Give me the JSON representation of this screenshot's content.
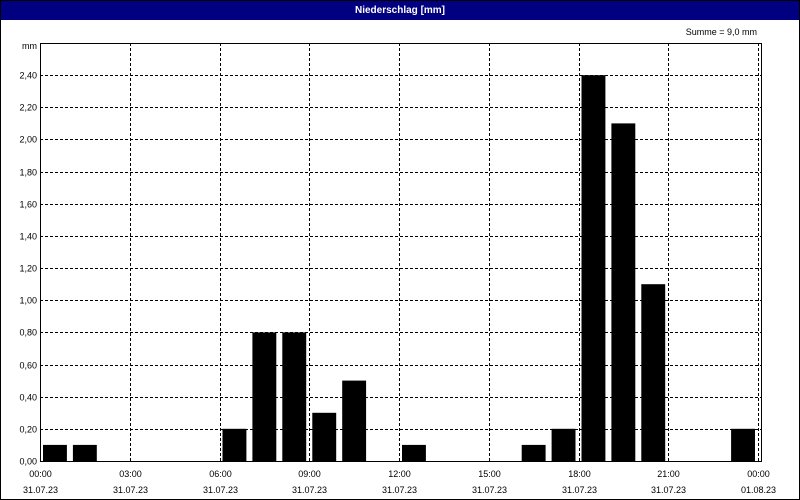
{
  "window": {
    "title": "Niederschlag [mm]"
  },
  "colors": {
    "titlebar": "#000080",
    "bar": "#000000",
    "grid": "#000000",
    "background": "#ffffff"
  },
  "chart_data": {
    "type": "bar",
    "title": "Niederschlag [mm]",
    "ylabel": "mm",
    "xlabel": "",
    "annotation": "Summe = 9,0 mm",
    "ylim": [
      0,
      2.6
    ],
    "yticks": [
      0,
      0.2,
      0.4,
      0.6,
      0.8,
      1.0,
      1.2,
      1.4,
      1.6,
      1.8,
      2.0,
      2.2,
      2.4
    ],
    "ytick_labels": [
      "0,00",
      "0,20",
      "0,40",
      "0,60",
      "0,80",
      "1,00",
      "1,20",
      "1,40",
      "1,60",
      "1,80",
      "2,00",
      "2,20",
      "2,40"
    ],
    "x_unit": "hours since 31.07.23 00:00",
    "xlim": [
      0,
      24.1
    ],
    "xticks": [
      0,
      3,
      6,
      9,
      12,
      15,
      18,
      21,
      24
    ],
    "xtick_time_labels": [
      "00:00",
      "03:00",
      "06:00",
      "09:00",
      "12:00",
      "15:00",
      "18:00",
      "21:00",
      "00:00"
    ],
    "xtick_date_labels": [
      "31.07.23",
      "31.07.23",
      "31.07.23",
      "31.07.23",
      "31.07.23",
      "31.07.23",
      "31.07.23",
      "31.07.23",
      "01.08.23"
    ],
    "grid": true,
    "bars": [
      {
        "time": "00:00",
        "value": 0.1
      },
      {
        "time": "01:00",
        "value": 0.1
      },
      {
        "time": "02:00",
        "value": 0
      },
      {
        "time": "03:00",
        "value": 0
      },
      {
        "time": "04:00",
        "value": 0
      },
      {
        "time": "05:00",
        "value": 0
      },
      {
        "time": "06:00",
        "value": 0.2
      },
      {
        "time": "07:00",
        "value": 0.8
      },
      {
        "time": "08:00",
        "value": 0.8
      },
      {
        "time": "09:00",
        "value": 0.3
      },
      {
        "time": "10:00",
        "value": 0.5
      },
      {
        "time": "11:00",
        "value": 0
      },
      {
        "time": "12:00",
        "value": 0.1
      },
      {
        "time": "13:00",
        "value": 0
      },
      {
        "time": "14:00",
        "value": 0
      },
      {
        "time": "15:00",
        "value": 0
      },
      {
        "time": "16:00",
        "value": 0.1
      },
      {
        "time": "17:00",
        "value": 0.2
      },
      {
        "time": "18:00",
        "value": 2.4
      },
      {
        "time": "19:00",
        "value": 2.1
      },
      {
        "time": "20:00",
        "value": 1.1
      },
      {
        "time": "21:00",
        "value": 0
      },
      {
        "time": "22:00",
        "value": 0
      },
      {
        "time": "23:00",
        "value": 0.2
      }
    ]
  }
}
